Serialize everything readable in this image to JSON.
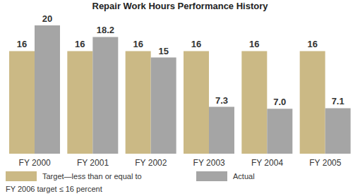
{
  "chart_data": {
    "type": "bar",
    "title": "Repair Work Hours Performance History",
    "categories": [
      "FY 2000",
      "FY 2001",
      "FY 2002",
      "FY 2003",
      "FY 2004",
      "FY 2005"
    ],
    "series": [
      {
        "name": "Target—less than or equal to",
        "color": "#cbb985",
        "values": [
          16,
          16,
          16,
          16,
          16,
          16
        ]
      },
      {
        "name": "Actual",
        "color": "#a5a5a5",
        "values": [
          20,
          18.2,
          15,
          7.3,
          7.0,
          7.1
        ],
        "value_labels": [
          "20",
          "18.2",
          "15",
          "7.3",
          "7.0",
          "7.1"
        ]
      }
    ],
    "ylim": [
      0,
      20
    ],
    "grid": false,
    "legend": "bottom",
    "data_labels": true,
    "tick_labels": "x",
    "annotations": [
      "FY 2006 target ≤ 16 percent"
    ]
  }
}
